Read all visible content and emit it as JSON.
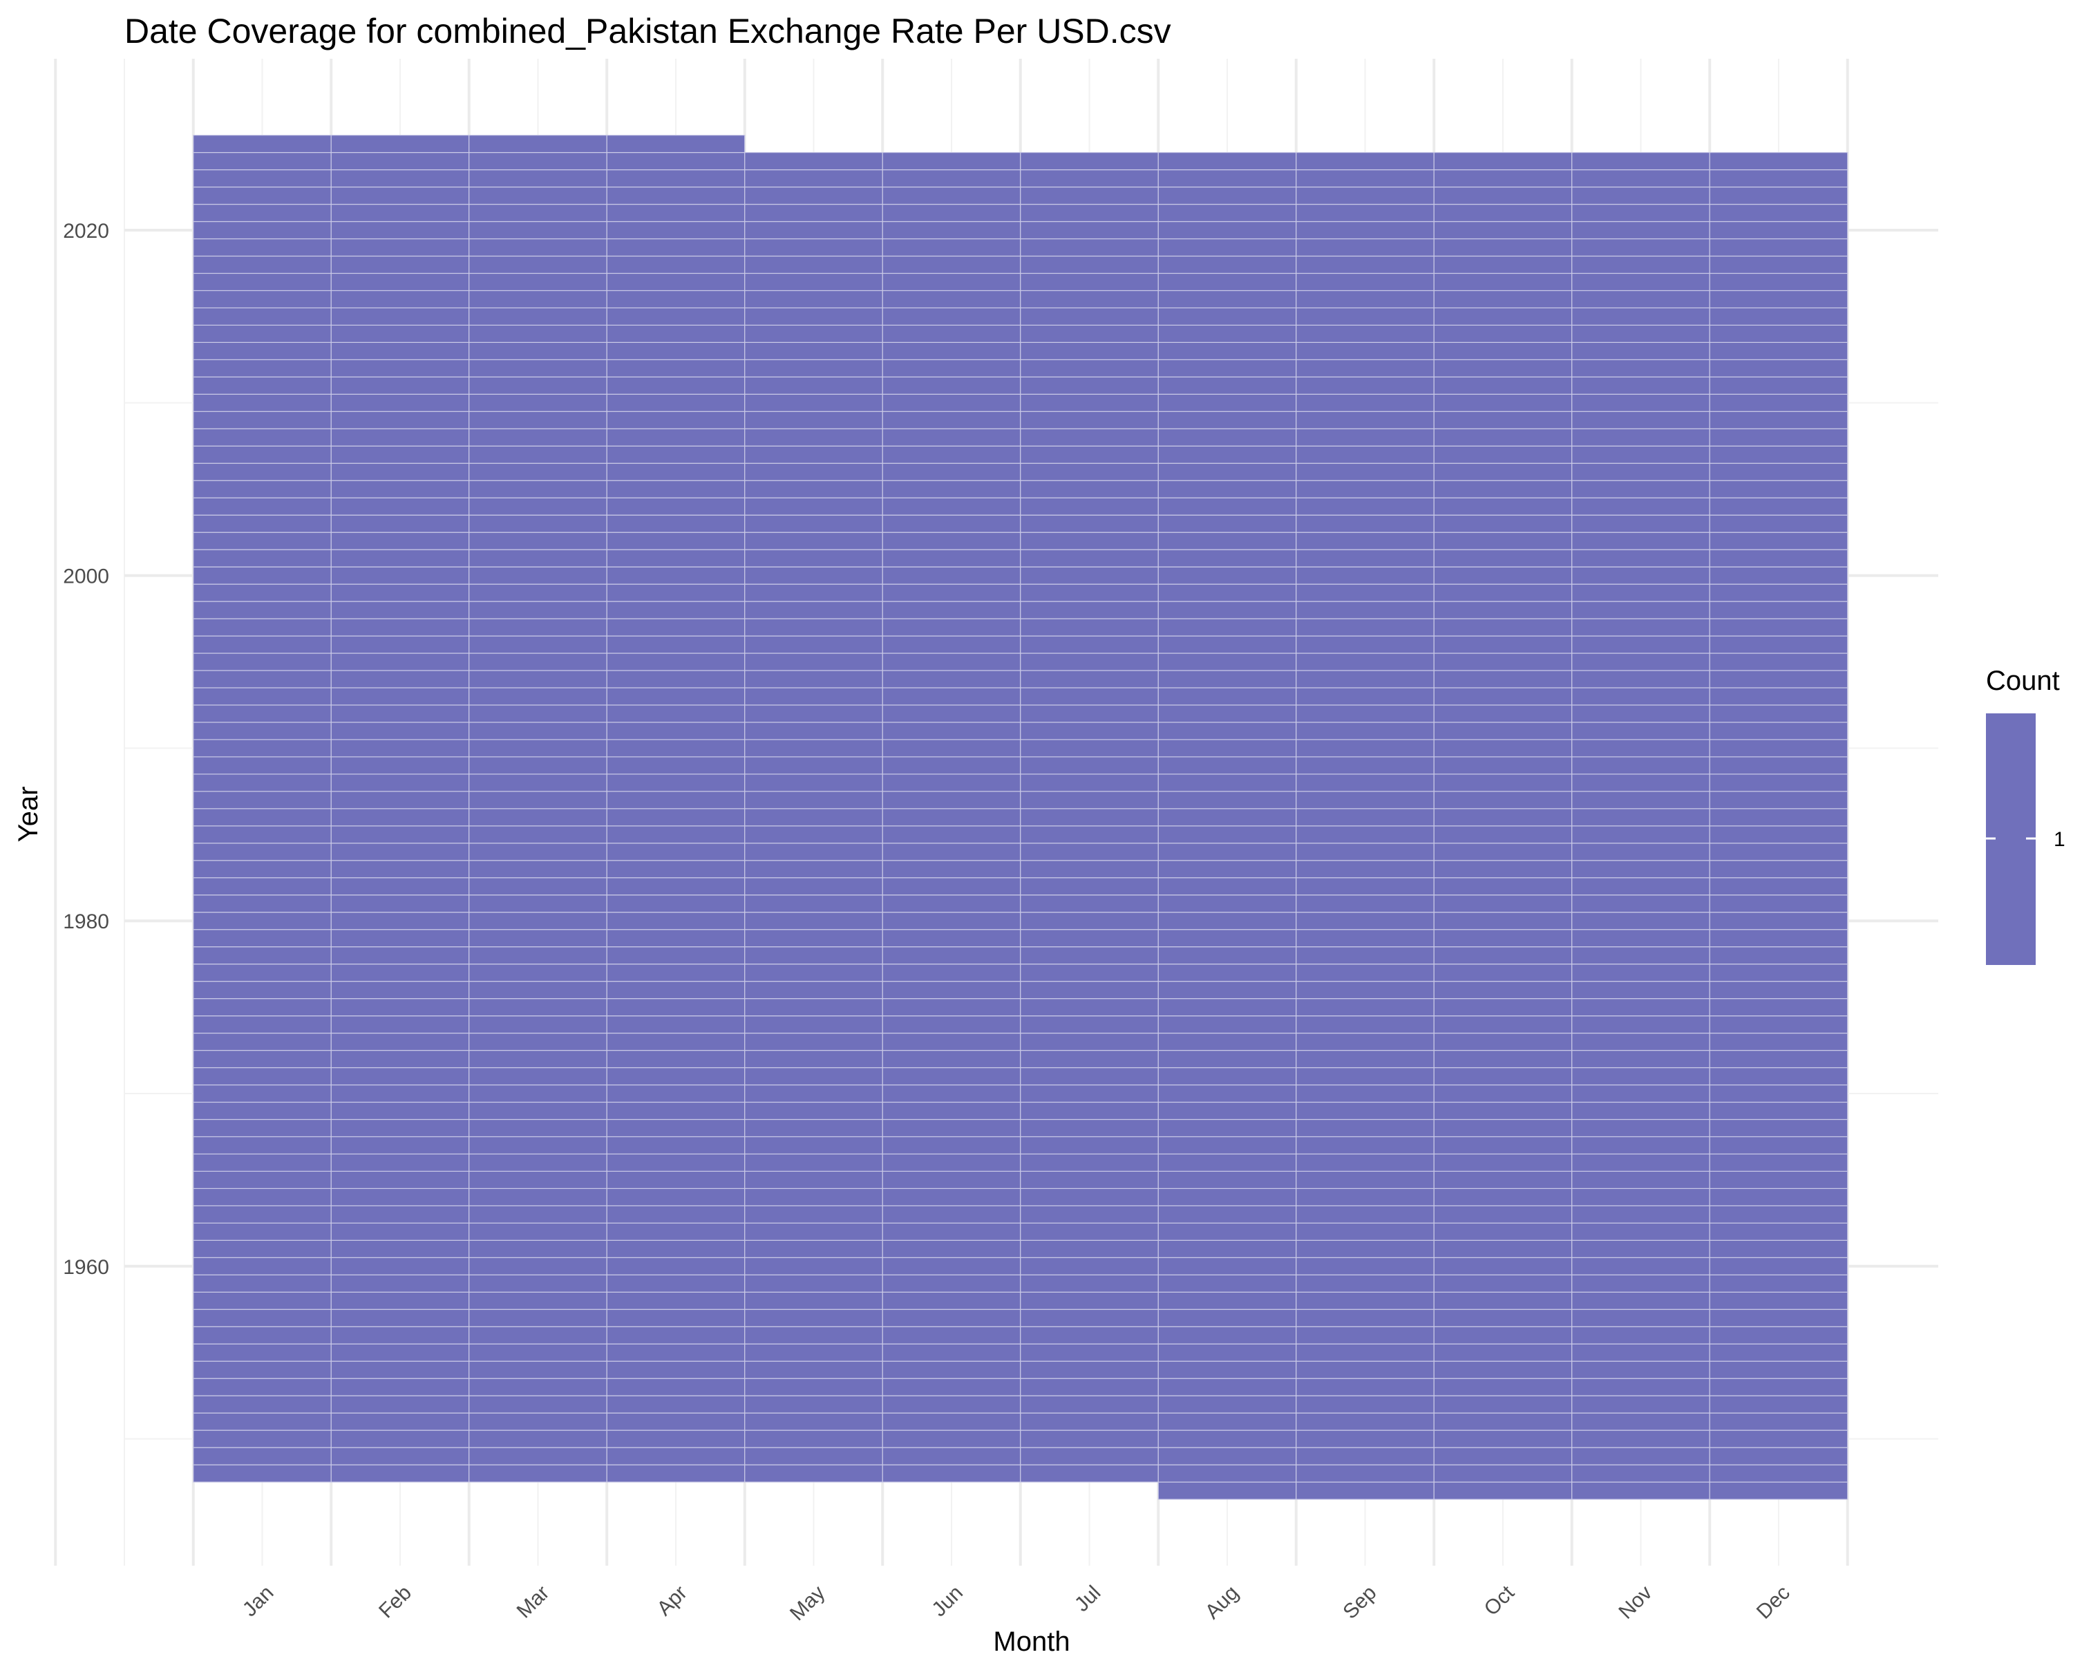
{
  "chart_data": {
    "type": "heatmap",
    "title": "Date Coverage for combined_Pakistan Exchange Rate Per USD.csv",
    "xlabel": "Month",
    "ylabel": "Year",
    "categories": [
      "Jan",
      "Feb",
      "Mar",
      "Apr",
      "May",
      "Jun",
      "Jul",
      "Aug",
      "Sep",
      "Oct",
      "Nov",
      "Dec"
    ],
    "y_ticks": [
      1960,
      1980,
      2000,
      2020
    ],
    "ylim": [
      1945,
      2027
    ],
    "coverage": [
      {
        "month": "Jan",
        "start_year": 1948,
        "end_year": 2025
      },
      {
        "month": "Feb",
        "start_year": 1948,
        "end_year": 2025
      },
      {
        "month": "Mar",
        "start_year": 1948,
        "end_year": 2025
      },
      {
        "month": "Apr",
        "start_year": 1948,
        "end_year": 2025
      },
      {
        "month": "May",
        "start_year": 1948,
        "end_year": 2024
      },
      {
        "month": "Jun",
        "start_year": 1948,
        "end_year": 2024
      },
      {
        "month": "Jul",
        "start_year": 1948,
        "end_year": 2024
      },
      {
        "month": "Aug",
        "start_year": 1947,
        "end_year": 2024
      },
      {
        "month": "Sep",
        "start_year": 1947,
        "end_year": 2024
      },
      {
        "month": "Oct",
        "start_year": 1947,
        "end_year": 2024
      },
      {
        "month": "Nov",
        "start_year": 1947,
        "end_year": 2024
      },
      {
        "month": "Dec",
        "start_year": 1947,
        "end_year": 2024
      }
    ],
    "cell_value": 1,
    "fill_color": "#7070bb",
    "cell_border_color": "#c9c9e6",
    "legend": {
      "title": "Count",
      "labels": [
        "1"
      ],
      "placement": "right"
    },
    "grid": true
  }
}
